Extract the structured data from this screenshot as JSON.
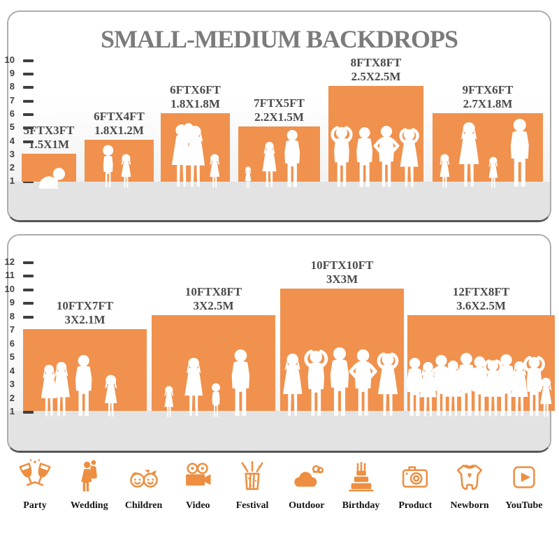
{
  "title": "SMALL-MEDIUM BACKDROPS",
  "colors": {
    "backdrop_orange": "#F0914D",
    "icon_orange": "#ED8E40",
    "title_gray": "#7B7B7B",
    "label_gray": "#4A4A4A",
    "ground_gray": "#E3E3E3"
  },
  "panel_small": {
    "ruler": [
      "10",
      "9",
      "8",
      "7",
      "6",
      "5",
      "4",
      "3",
      "2",
      "1"
    ],
    "backdrops": [
      {
        "ft": "5FTX3FT",
        "m": "1.5X1M"
      },
      {
        "ft": "6FTX4FT",
        "m": "1.8X1.2M"
      },
      {
        "ft": "6FTX6FT",
        "m": "1.8X1.8M"
      },
      {
        "ft": "7FTX5FT",
        "m": "2.2X1.5M"
      },
      {
        "ft": "8FTX8FT",
        "m": "2.5X2.5M"
      },
      {
        "ft": "9FTX6FT",
        "m": "2.7X1.8M"
      }
    ]
  },
  "panel_medium": {
    "ruler": [
      "12",
      "11",
      "10",
      "9",
      "8",
      "7",
      "6",
      "5",
      "4",
      "3",
      "2",
      "1"
    ],
    "backdrops": [
      {
        "ft": "10FTX7FT",
        "m": "3X2.1M"
      },
      {
        "ft": "10FTX8FT",
        "m": "3X2.5M"
      },
      {
        "ft": "10FTX10FT",
        "m": "3X3M"
      },
      {
        "ft": "12FTX8FT",
        "m": "3.6X2.5M"
      }
    ]
  },
  "categories": [
    "Party",
    "Wedding",
    "Children",
    "Video",
    "Festival",
    "Outdoor",
    "Birthday",
    "Product",
    "Newborn",
    "YouTube"
  ]
}
